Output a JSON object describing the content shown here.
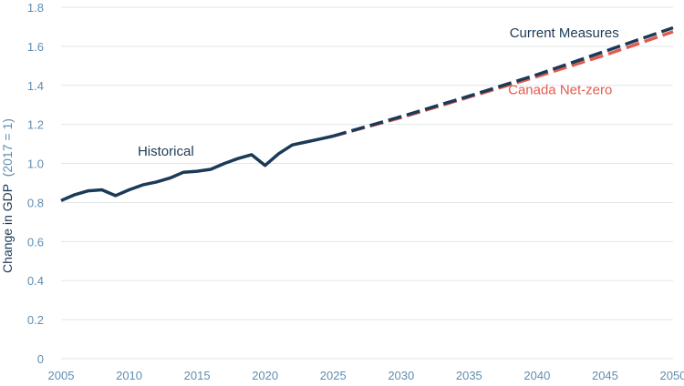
{
  "chart_data": {
    "type": "line",
    "title": "",
    "xlabel": "",
    "ylabel": "Change in GDP",
    "ylabel_note": "(2017 = 1)",
    "xlim": [
      2005,
      2050
    ],
    "ylim": [
      0,
      1.8
    ],
    "xticks": [
      2005,
      2010,
      2015,
      2020,
      2025,
      2030,
      2035,
      2040,
      2045,
      2050
    ],
    "yticks": [
      0,
      0.2,
      0.4,
      0.6,
      0.8,
      1.0,
      1.2,
      1.4,
      1.6,
      1.8
    ],
    "ytick_labels": [
      "0",
      "0.2",
      "0.4",
      "0.6",
      "0.8",
      "1.0",
      "1.2",
      "1.4",
      "1.6",
      "1.8"
    ],
    "grid": "horizontal",
    "legend": "inline labels",
    "series": [
      {
        "name": "Historical",
        "style": "solid",
        "color": "#1b3a57",
        "x": [
          2005,
          2006,
          2007,
          2008,
          2009,
          2010,
          2011,
          2012,
          2013,
          2014,
          2015,
          2016,
          2017,
          2018,
          2019,
          2020,
          2021,
          2022,
          2023,
          2024,
          2025
        ],
        "y": [
          0.81,
          0.84,
          0.86,
          0.865,
          0.835,
          0.865,
          0.89,
          0.905,
          0.925,
          0.955,
          0.96,
          0.97,
          1.0,
          1.025,
          1.045,
          0.99,
          1.05,
          1.095,
          1.11,
          1.125,
          1.14
        ]
      },
      {
        "name": "Current Measures",
        "style": "dashed",
        "color": "#1b3a57",
        "x": [
          2025,
          2030,
          2035,
          2040,
          2045,
          2050
        ],
        "y": [
          1.14,
          1.24,
          1.345,
          1.455,
          1.575,
          1.695
        ]
      },
      {
        "name": "Canada Net-zero",
        "style": "dashed",
        "color": "#e15b4f",
        "x": [
          2025,
          2030,
          2035,
          2040,
          2045,
          2050
        ],
        "y": [
          1.14,
          1.235,
          1.34,
          1.445,
          1.555,
          1.675
        ]
      }
    ],
    "annotations": [
      {
        "text": "Historical",
        "x": 2012.7,
        "y": 1.04,
        "color": "#1b3a57"
      },
      {
        "text": "Current Measures",
        "x": 2042,
        "y": 1.645,
        "color": "#1b3a57"
      },
      {
        "text": "Canada Net-zero",
        "x": 2041.7,
        "y": 1.355,
        "color": "#e15b4f"
      }
    ]
  }
}
